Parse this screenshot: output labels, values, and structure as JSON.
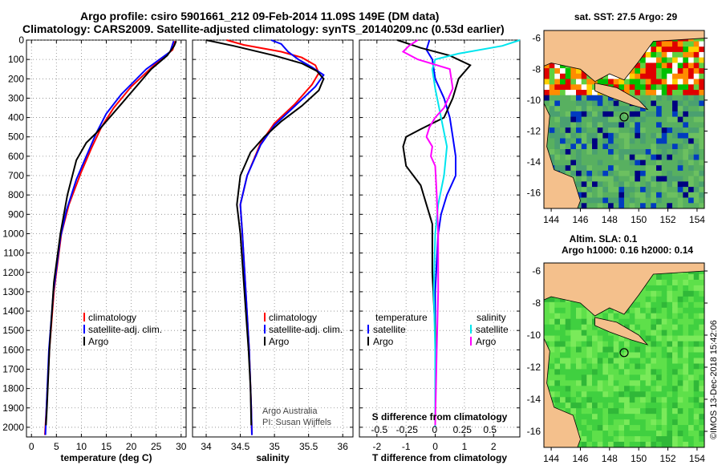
{
  "header": {
    "line1": "Argo profile: csiro 5901661_212 09-Feb-2014 11.09S 149E (DM data)",
    "line2": "Climatology: CARS2009. Satellite-adjusted climatology: synTS_20140209.nc (0.53d earlier)"
  },
  "colors": {
    "climatology": "#ff0000",
    "satellite": "#0000ff",
    "argo": "#000000",
    "s_sat": "#00e5ee",
    "s_argo": "#ff00ff"
  },
  "chart_data": [
    {
      "id": "temperature",
      "type": "line",
      "xlabel": "temperature (deg C)",
      "ylabel": "",
      "xlim": [
        -1,
        31
      ],
      "ylim": [
        2050,
        0
      ],
      "xticks": [
        0,
        5,
        10,
        15,
        20,
        25,
        30
      ],
      "yticks": [
        0,
        100,
        200,
        300,
        400,
        500,
        600,
        700,
        800,
        900,
        1000,
        1100,
        1200,
        1300,
        1400,
        1500,
        1600,
        1700,
        1800,
        1900,
        2000
      ],
      "legend": [
        "climatology",
        "satellite-adj. clim.",
        "Argo"
      ],
      "series": [
        {
          "name": "climatology",
          "color": "red",
          "points": [
            [
              28.8,
              5
            ],
            [
              28.3,
              50
            ],
            [
              25,
              120
            ],
            [
              20,
              240
            ],
            [
              16.5,
              350
            ],
            [
              14,
              450
            ],
            [
              12,
              560
            ],
            [
              10,
              680
            ],
            [
              7.5,
              850
            ],
            [
              6,
              1000
            ],
            [
              4.5,
              1300
            ],
            [
              3.6,
              1600
            ],
            [
              3,
              1900
            ],
            [
              2.7,
              2040
            ]
          ]
        },
        {
          "name": "satellite-adj. clim.",
          "color": "blue",
          "points": [
            [
              28.5,
              5
            ],
            [
              27.8,
              60
            ],
            [
              23,
              150
            ],
            [
              18,
              280
            ],
            [
              15,
              380
            ],
            [
              13,
              480
            ],
            [
              11,
              600
            ],
            [
              9,
              720
            ],
            [
              7,
              880
            ],
            [
              5.8,
              1020
            ],
            [
              4.4,
              1300
            ],
            [
              3.5,
              1600
            ],
            [
              3,
              1900
            ],
            [
              2.8,
              2040
            ]
          ]
        },
        {
          "name": "Argo",
          "color": "black",
          "points": [
            [
              29,
              5
            ],
            [
              28.6,
              30
            ],
            [
              27.2,
              80
            ],
            [
              24,
              150
            ],
            [
              18,
              330
            ],
            [
              15,
              420
            ],
            [
              13,
              480
            ],
            [
              11,
              530
            ],
            [
              9,
              620
            ],
            [
              7.2,
              800
            ],
            [
              5.8,
              1000
            ],
            [
              4.5,
              1250
            ],
            [
              3.6,
              1600
            ],
            [
              3.1,
              1900
            ],
            [
              2.9,
              1990
            ]
          ]
        }
      ]
    },
    {
      "id": "salinity",
      "type": "line",
      "xlabel": "salinity",
      "ylabel": "",
      "xlim": [
        33.8,
        36.15
      ],
      "ylim": [
        2050,
        0
      ],
      "xticks": [
        34,
        34.5,
        35,
        35.5,
        36
      ],
      "yticks": [
        0,
        100,
        200,
        300,
        400,
        500,
        600,
        700,
        800,
        900,
        1000,
        1100,
        1200,
        1300,
        1400,
        1500,
        1600,
        1700,
        1800,
        1900,
        2000
      ],
      "legend": [
        "climatology",
        "satellite-adj. clim.",
        "Argo"
      ],
      "credit": [
        "Argo Australia",
        "PI: Susan Wijffels"
      ],
      "series": [
        {
          "name": "climatology",
          "color": "red",
          "points": [
            [
              34.3,
              0
            ],
            [
              34.55,
              25
            ],
            [
              35.1,
              60
            ],
            [
              35.4,
              90
            ],
            [
              35.6,
              130
            ],
            [
              35.65,
              170
            ],
            [
              35.55,
              230
            ],
            [
              35.3,
              330
            ],
            [
              35.0,
              430
            ],
            [
              34.8,
              530
            ],
            [
              34.6,
              700
            ],
            [
              34.5,
              850
            ],
            [
              34.53,
              1000
            ],
            [
              34.58,
              1300
            ],
            [
              34.63,
              1600
            ],
            [
              34.66,
              1900
            ],
            [
              34.67,
              2040
            ]
          ]
        },
        {
          "name": "satellite-adj. clim.",
          "color": "blue",
          "points": [
            [
              34.95,
              0
            ],
            [
              35.1,
              20
            ],
            [
              35.2,
              60
            ],
            [
              35.35,
              100
            ],
            [
              35.55,
              140
            ],
            [
              35.72,
              180
            ],
            [
              35.6,
              240
            ],
            [
              35.3,
              340
            ],
            [
              35.0,
              440
            ],
            [
              34.8,
              540
            ],
            [
              34.6,
              700
            ],
            [
              34.5,
              850
            ],
            [
              34.53,
              1000
            ],
            [
              34.58,
              1300
            ],
            [
              34.63,
              1600
            ],
            [
              34.66,
              1900
            ],
            [
              34.67,
              2040
            ]
          ]
        },
        {
          "name": "Argo",
          "color": "black",
          "points": [
            [
              34.0,
              0
            ],
            [
              34.4,
              30
            ],
            [
              35.0,
              80
            ],
            [
              35.4,
              120
            ],
            [
              35.62,
              160
            ],
            [
              35.72,
              200
            ],
            [
              35.65,
              260
            ],
            [
              35.4,
              340
            ],
            [
              35.1,
              420
            ],
            [
              34.85,
              500
            ],
            [
              34.65,
              580
            ],
            [
              34.5,
              700
            ],
            [
              34.45,
              850
            ],
            [
              34.5,
              1000
            ],
            [
              34.56,
              1300
            ],
            [
              34.62,
              1600
            ],
            [
              34.65,
              1800
            ],
            [
              34.66,
              1990
            ]
          ]
        }
      ]
    },
    {
      "id": "difference",
      "type": "line",
      "xlabel": "T difference from climatology",
      "ylabel": "",
      "xlabel_top": "S difference from climatology",
      "xlim": [
        -2.6,
        2.9
      ],
      "ylim": [
        2050,
        0
      ],
      "xticks": [
        -2,
        -1,
        0,
        1,
        2
      ],
      "xticks_top": [
        -0.5,
        -0.25,
        0,
        0.25,
        0.5
      ],
      "xticklabels_top": [
        "-0.5",
        "-0.25",
        "0",
        "0.25",
        "0.5"
      ],
      "yticks": [
        0,
        100,
        200,
        300,
        400,
        500,
        600,
        700,
        800,
        900,
        1000,
        1100,
        1200,
        1300,
        1400,
        1500,
        1600,
        1700,
        1800,
        1900,
        2000
      ],
      "legend_left_title": "temperature",
      "legend_right_title": "salinity",
      "legend_left": [
        "satellite",
        "Argo"
      ],
      "legend_right": [
        "satellite",
        "Argo"
      ],
      "series": [
        {
          "name": "T satellite",
          "color": "blue",
          "points": [
            [
              -0.2,
              0
            ],
            [
              -0.3,
              50
            ],
            [
              -0.1,
              100
            ],
            [
              0,
              200
            ],
            [
              0.3,
              300
            ],
            [
              0.5,
              400
            ],
            [
              0.6,
              500
            ],
            [
              0.7,
              600
            ],
            [
              0.7,
              700
            ],
            [
              0.4,
              800
            ],
            [
              0.2,
              900
            ],
            [
              0.1,
              1000
            ],
            [
              0,
              1300
            ],
            [
              0,
              1600
            ],
            [
              0,
              2000
            ]
          ]
        },
        {
          "name": "T Argo",
          "color": "black",
          "points": [
            [
              -1.3,
              0
            ],
            [
              -0.5,
              40
            ],
            [
              0.5,
              80
            ],
            [
              1.2,
              130
            ],
            [
              0.8,
              200
            ],
            [
              0.6,
              300
            ],
            [
              0.3,
              400
            ],
            [
              -0.5,
              460
            ],
            [
              -1,
              500
            ],
            [
              -1.1,
              550
            ],
            [
              -1,
              650
            ],
            [
              -0.5,
              750
            ],
            [
              -0.3,
              850
            ],
            [
              -0.1,
              950
            ],
            [
              -0.1,
              1200
            ],
            [
              0,
              1500
            ],
            [
              0,
              1800
            ],
            [
              0,
              1990
            ]
          ]
        },
        {
          "name": "S satellite",
          "color": "cyan",
          "points": [
            [
              2.9,
              0
            ],
            [
              2.3,
              30
            ],
            [
              0.8,
              70
            ],
            [
              0,
              100
            ],
            [
              -0.1,
              150
            ],
            [
              0,
              250
            ],
            [
              0.2,
              400
            ],
            [
              0.4,
              550
            ],
            [
              0.3,
              700
            ],
            [
              0.1,
              850
            ],
            [
              0,
              1000
            ],
            [
              -0.05,
              1300
            ],
            [
              0,
              1600
            ],
            [
              0,
              2000
            ]
          ]
        },
        {
          "name": "S Argo",
          "color": "magenta",
          "points": [
            [
              -0.6,
              0
            ],
            [
              -0.9,
              30
            ],
            [
              -1.1,
              60
            ],
            [
              -0.6,
              100
            ],
            [
              0.5,
              150
            ],
            [
              0.6,
              250
            ],
            [
              0.3,
              350
            ],
            [
              0,
              400
            ],
            [
              -0.2,
              450
            ],
            [
              -0.3,
              500
            ],
            [
              -0.1,
              550
            ],
            [
              -0.15,
              600
            ],
            [
              0,
              650
            ],
            [
              0.05,
              800
            ],
            [
              0.1,
              1000
            ],
            [
              0.1,
              1300
            ],
            [
              0.05,
              1600
            ],
            [
              0,
              1990
            ]
          ]
        }
      ]
    }
  ],
  "maps": {
    "sst_title": "sat. SST: 27.5 Argo: 29",
    "sla_title1": "Altim. SLA: 0.1",
    "sla_title2": "Argo h1000: 0.16 h2000: 0.14",
    "xticks": [
      "144",
      "146",
      "148",
      "150",
      "152",
      "154"
    ],
    "yticks": [
      "-6",
      "-8",
      "-10",
      "-12",
      "-14",
      "-16"
    ],
    "float_position": [
      149,
      -11.09
    ]
  },
  "footer": "©IMOS 13-Dec-2018 15:42:06"
}
